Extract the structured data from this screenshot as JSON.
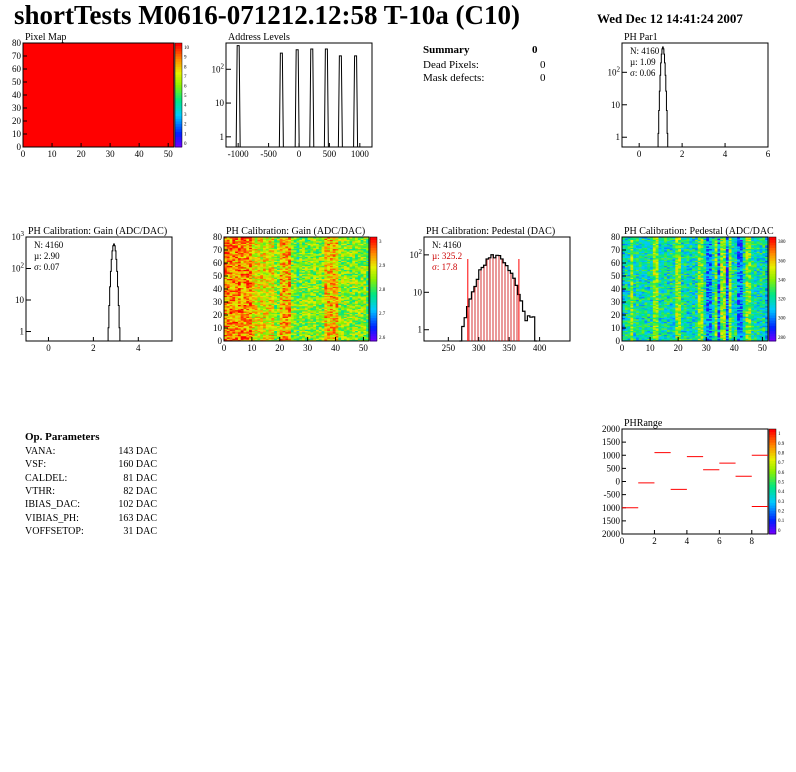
{
  "header": {
    "title": "shortTests M0616-071212.12:58 T-10a (C10)",
    "date": "Wed Dec 12 14:41:24 2007"
  },
  "summary": {
    "heading": "Summary",
    "heading_value": "0",
    "rows": [
      {
        "label": "Dead Pixels:",
        "value": "0"
      },
      {
        "label": "Mask defects:",
        "value": "0"
      }
    ]
  },
  "op_params": {
    "heading": "Op. Parameters",
    "rows": [
      {
        "label": "VANA:",
        "value": "143 DAC"
      },
      {
        "label": "VSF:",
        "value": "160 DAC"
      },
      {
        "label": "CALDEL:",
        "value": "81 DAC"
      },
      {
        "label": "VTHR:",
        "value": "82 DAC"
      },
      {
        "label": "IBIAS_DAC:",
        "value": "102 DAC"
      },
      {
        "label": "VIBIAS_PH:",
        "value": "163 DAC"
      },
      {
        "label": "VOFFSETOP:",
        "value": "31 DAC"
      }
    ]
  },
  "colors": {
    "frame": "#000000",
    "red": "#ff0000",
    "fit": "#cc0000"
  },
  "chart_data": [
    {
      "id": "pixel-map",
      "type": "heatmap",
      "title": "Pixel Map",
      "xlim": [
        0,
        52
      ],
      "ylim": [
        0,
        80
      ],
      "xticks": [
        "0",
        "10",
        "20",
        "30",
        "40",
        "50"
      ],
      "yticks": [
        "0",
        "10",
        "20",
        "30",
        "40",
        "50",
        "60",
        "70",
        "80"
      ],
      "uniform_value": 10,
      "zlim": [
        0,
        10
      ],
      "zticks": [
        "0",
        "1",
        "2",
        "3",
        "4",
        "5",
        "6",
        "7",
        "8",
        "9",
        "10"
      ]
    },
    {
      "id": "address-levels",
      "type": "bar",
      "title": "Address Levels",
      "yscale": "log",
      "xlim": [
        -1200,
        1200
      ],
      "ylim": [
        0.5,
        600
      ],
      "xticks": [
        "-1000",
        "-500",
        "0",
        "500",
        "1000"
      ],
      "yticks": [
        "1",
        "10",
        "10^2"
      ],
      "peaks": [
        {
          "x": -1000,
          "y": 500
        },
        {
          "x": -290,
          "y": 300
        },
        {
          "x": -30,
          "y": 380
        },
        {
          "x": 210,
          "y": 400
        },
        {
          "x": 450,
          "y": 400
        },
        {
          "x": 680,
          "y": 250
        },
        {
          "x": 930,
          "y": 250
        }
      ]
    },
    {
      "id": "ph-par1",
      "type": "bar",
      "title": "PH Par1",
      "yscale": "log",
      "xlim": [
        -0.8,
        6
      ],
      "ylim": [
        0.5,
        800
      ],
      "xticks": [
        "0",
        "2",
        "4",
        "6"
      ],
      "yticks": [
        "1",
        "10",
        "10^2"
      ],
      "stats": {
        "entries": "N: 4160",
        "mean": "µ: 1.09",
        "rms": "σ: 0.06"
      },
      "peak": {
        "mean": 1.09,
        "sigma": 0.06,
        "max": 600
      }
    },
    {
      "id": "gain-1d",
      "type": "bar",
      "title": "PH Calibration: Gain (ADC/DAC)",
      "yscale": "log",
      "xlim": [
        -1,
        5.5
      ],
      "ylim": [
        0.5,
        1000
      ],
      "xticks": [
        "0",
        "2",
        "4"
      ],
      "yticks": [
        "1",
        "10",
        "10^2",
        "10^3"
      ],
      "stats": {
        "entries": "N: 4160",
        "mean": "µ: 2.90",
        "rms": "σ: 0.07"
      },
      "peak": {
        "mean": 2.9,
        "sigma": 0.07,
        "max": 600
      }
    },
    {
      "id": "gain-map",
      "type": "heatmap",
      "title": "PH Calibration: Gain (ADC/DAC)",
      "xlim": [
        0,
        52
      ],
      "ylim": [
        0,
        80
      ],
      "xticks": [
        "0",
        "10",
        "20",
        "30",
        "40",
        "50"
      ],
      "yticks": [
        "0",
        "10",
        "20",
        "30",
        "40",
        "50",
        "60",
        "70",
        "80"
      ],
      "zticks": [
        "2.6",
        "2.7",
        "2.8",
        "2.9",
        "3"
      ],
      "zlim": [
        2.55,
        3.05
      ]
    },
    {
      "id": "pedestal-1d",
      "type": "bar",
      "title": "PH Calibration: Pedestal (DAC)",
      "yscale": "log",
      "xlim": [
        210,
        450
      ],
      "ylim": [
        0.5,
        300
      ],
      "xticks": [
        "250",
        "300",
        "350",
        "400"
      ],
      "yticks": [
        "1",
        "10",
        "10^2"
      ],
      "stats": {
        "entries": "N: 4160",
        "mean": "µ: 325.2",
        "rms": "σ: 17.8"
      },
      "peak": {
        "mean": 325.2,
        "sigma": 17.8,
        "max": 95
      },
      "fit_range": [
        282,
        366
      ]
    },
    {
      "id": "pedestal-map",
      "type": "heatmap",
      "title": "PH Calibration: Pedestal (ADC/DAC",
      "xlim": [
        0,
        52
      ],
      "ylim": [
        0,
        80
      ],
      "xticks": [
        "0",
        "10",
        "20",
        "30",
        "40",
        "50"
      ],
      "yticks": [
        "0",
        "10",
        "20",
        "30",
        "40",
        "50",
        "60",
        "70",
        "80"
      ],
      "zticks": [
        "280",
        "300",
        "320",
        "340",
        "360",
        "380"
      ],
      "zlim": [
        270,
        390
      ]
    },
    {
      "id": "ph-range",
      "type": "scatter",
      "title": "PHRange",
      "xlim": [
        0,
        9
      ],
      "ylim": [
        -2000,
        2000
      ],
      "xticks": [
        "0",
        "2",
        "4",
        "6",
        "8"
      ],
      "yticks": [
        "2000",
        "1500",
        "1000",
        "500",
        "0",
        "-500",
        "1000",
        "1500",
        "2000"
      ],
      "zticks": [
        "0",
        "0.1",
        "0.2",
        "0.3",
        "0.4",
        "0.5",
        "0.6",
        "0.7",
        "0.8",
        "0.9",
        "1"
      ],
      "segments": [
        {
          "x": 0.5,
          "y": -1000
        },
        {
          "x": 1.5,
          "y": -50
        },
        {
          "x": 2.5,
          "y": 1100
        },
        {
          "x": 3.5,
          "y": -300
        },
        {
          "x": 4.5,
          "y": 950
        },
        {
          "x": 5.5,
          "y": 450
        },
        {
          "x": 6.5,
          "y": 700
        },
        {
          "x": 7.5,
          "y": 200
        },
        {
          "x": 8.5,
          "y": 1000
        },
        {
          "x": 8.5,
          "y": -950
        }
      ]
    }
  ]
}
